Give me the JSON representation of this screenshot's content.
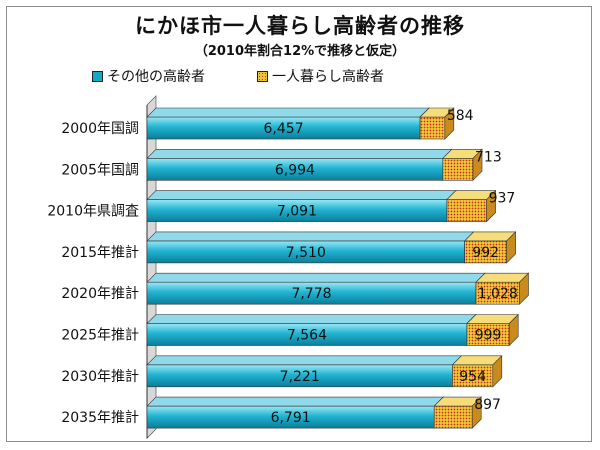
{
  "chart_data": {
    "type": "bar",
    "orientation": "horizontal",
    "stacked": true,
    "title": "にかほ市一人暮らし高齢者の推移",
    "subtitle": "（2010年割合12%で推移と仮定）",
    "categories": [
      "2000年国調",
      "2005年国調",
      "2010年県調査",
      "2015年推計",
      "2020年推計",
      "2025年推計",
      "2030年推計",
      "2035年推計"
    ],
    "series": [
      {
        "name": "その他の高齢者",
        "values": [
          "6,457",
          "6,994",
          "7,091",
          "7,510",
          "7,778",
          "7,564",
          "7,221",
          "6,791"
        ],
        "color": "#15a8c6"
      },
      {
        "name": "一人暮らし高齢者",
        "values": [
          "584",
          "713",
          "937",
          "992",
          "1,028",
          "999",
          "954",
          "897"
        ],
        "color": "#e2a030"
      }
    ],
    "legend_position": "top-left",
    "grid": false
  }
}
